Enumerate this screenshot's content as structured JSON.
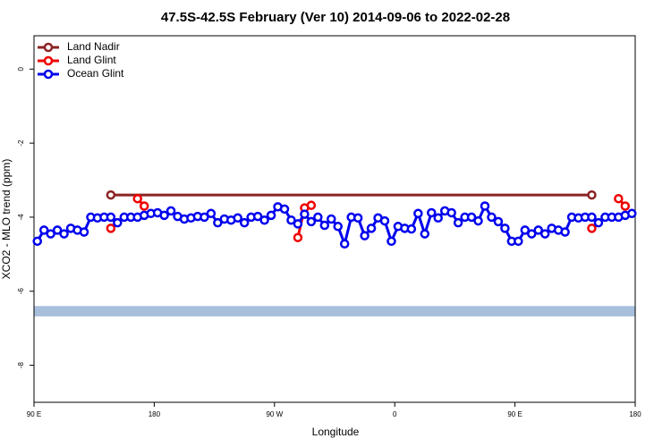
{
  "chart_data": {
    "type": "line",
    "title": "47.5S-42.5S February (Ver 10)   2014-09-06 to 2022-02-28",
    "x_label": "Longitude",
    "y_label": "XCO2 - MLO trend (ppm)",
    "xlim": [
      90,
      540
    ],
    "xticks": [
      {
        "value": 90,
        "label": "90 E"
      },
      180,
      {
        "value": 270,
        "label": "90 W"
      },
      {
        "value": 360,
        "label": "0"
      },
      {
        "value": 450,
        "label": "90 E"
      },
      {
        "value": 540,
        "label": "180"
      }
    ],
    "ylim": [
      -9,
      0.9
    ],
    "yticks": [
      0,
      -2,
      -4,
      -6,
      -8
    ],
    "legend": "top-left",
    "band": {
      "values": [
        -6.68,
        -6.4
      ],
      "color": "#a8bfdc"
    },
    "series": [
      {
        "name": "Land Nadir",
        "color": "#8b2323",
        "x": [
          147.5,
          507.5
        ],
        "values": [
          -3.4,
          -3.4
        ]
      },
      {
        "name": "Land Glint",
        "color": "#ee0000",
        "x": [
          147.5,
          152.5,
          167.5,
          172.5,
          282.5,
          287.5,
          292.5,
          297.5,
          302.5,
          507.5,
          512.5,
          527.5,
          532.5
        ],
        "values": [
          -4.3,
          null,
          -3.5,
          -3.7,
          null,
          -4.55,
          -3.75,
          -3.68,
          null,
          -4.3,
          null,
          -3.5,
          -3.7
        ]
      },
      {
        "name": "Ocean Glint",
        "color": "#0000ee",
        "x": [
          92.5,
          97.5,
          102.5,
          107.5,
          112.5,
          117.5,
          122.5,
          127.5,
          132.5,
          137.5,
          142.5,
          147.5,
          152.5,
          157.5,
          162.5,
          167.5,
          172.5,
          177.5,
          182.5,
          187.5,
          192.5,
          197.5,
          202.5,
          207.5,
          212.5,
          217.5,
          222.5,
          227.5,
          232.5,
          237.5,
          242.5,
          247.5,
          252.5,
          257.5,
          262.5,
          267.5,
          272.5,
          277.5,
          282.5,
          287.5,
          292.5,
          297.5,
          302.5,
          307.5,
          312.5,
          317.5,
          322.5,
          327.5,
          332.5,
          337.5,
          342.5,
          347.5,
          352.5,
          357.5,
          362.5,
          367.5,
          372.5,
          377.5,
          382.5,
          387.5,
          392.5,
          397.5,
          402.5,
          407.5,
          412.5,
          417.5,
          422.5,
          427.5,
          432.5,
          437.5,
          442.5,
          447.5,
          452.5,
          457.5,
          462.5,
          467.5,
          472.5,
          477.5,
          482.5,
          487.5,
          492.5,
          497.5,
          502.5,
          507.5,
          512.5,
          517.5,
          522.5,
          527.5,
          532.5,
          537.5
        ],
        "values": [
          -4.65,
          -4.35,
          -4.45,
          -4.35,
          -4.45,
          -4.3,
          -4.35,
          -4.4,
          -4.0,
          -4.02,
          -4.0,
          -4.0,
          -4.15,
          -4.0,
          -4.0,
          -4.0,
          -3.95,
          -3.9,
          -3.88,
          -3.95,
          -3.83,
          -3.98,
          -4.05,
          -4.02,
          -3.98,
          -4.0,
          -3.9,
          -4.15,
          -4.05,
          -4.08,
          -4.02,
          -4.15,
          -4.0,
          -3.98,
          -4.08,
          -3.95,
          -3.72,
          -3.78,
          -4.08,
          -4.18,
          -3.92,
          -4.12,
          -4.0,
          -4.22,
          -4.05,
          -4.25,
          -4.72,
          -4.0,
          -4.02,
          -4.5,
          -4.3,
          -4.02,
          -4.1,
          -4.65,
          -4.25,
          -4.3,
          -4.32,
          -3.9,
          -4.45,
          -3.88,
          -4.02,
          -3.83,
          -3.88,
          -4.15,
          -4.0,
          -4.0,
          -4.1,
          -3.7,
          -4.0,
          -4.12,
          -4.3,
          -4.65,
          -4.65,
          -4.35,
          -4.45,
          -4.35,
          -4.45,
          -4.3,
          -4.35,
          -4.4,
          -4.0,
          -4.02,
          -4.0,
          -4.0,
          -4.15,
          -4.0,
          -4.0,
          -4.0,
          -3.95,
          -3.9
        ]
      }
    ]
  }
}
